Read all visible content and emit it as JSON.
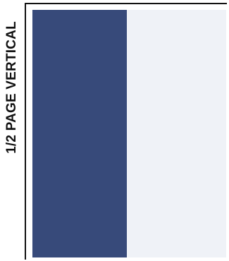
{
  "label": "1/2 PAGE VERTICAL",
  "colors": {
    "ad_area": "#374a7a",
    "remaining_area": "#eff2f7",
    "frame": "#111111"
  }
}
